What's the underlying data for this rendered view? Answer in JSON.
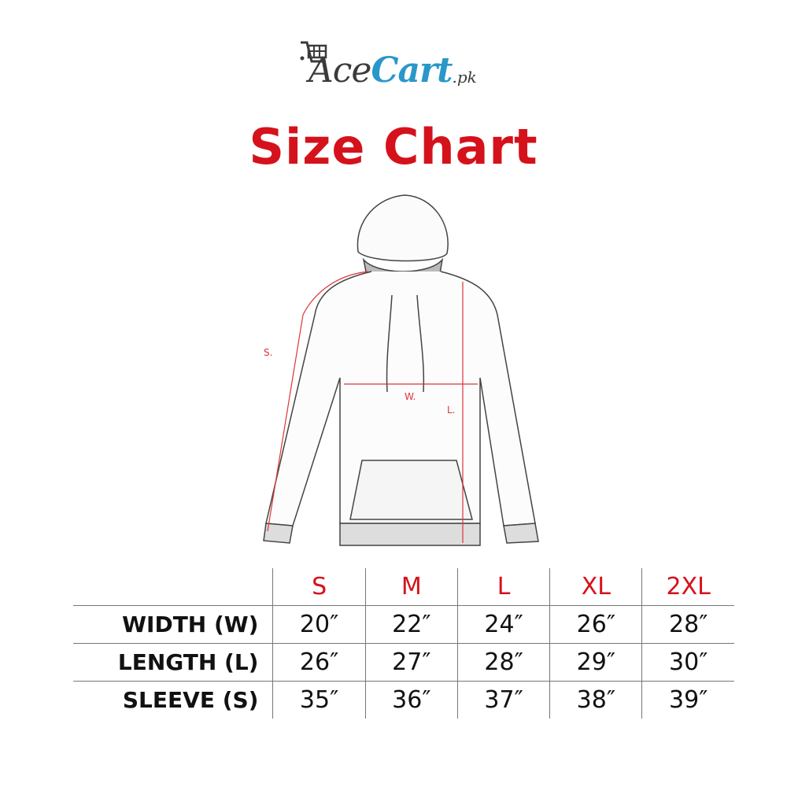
{
  "brand": {
    "logo_part1": "Ace",
    "logo_part2": "Cart",
    "logo_suffix": ".pk",
    "colors": {
      "dark": "#3b3b3d",
      "blue": "#2a97c9"
    }
  },
  "title": "Size Chart",
  "accent_color": "#d5121b",
  "diagram": {
    "sleeve_label": "S.",
    "width_label": "W.",
    "length_label": "L."
  },
  "table": {
    "sizes": [
      "S",
      "M",
      "L",
      "XL",
      "2XL"
    ],
    "rows": [
      {
        "label": "WIDTH (W)",
        "values": [
          "20″",
          "22″",
          "24″",
          "26″",
          "28″"
        ]
      },
      {
        "label": "LENGTH (L)",
        "values": [
          "26″",
          "27″",
          "28″",
          "29″",
          "30″"
        ]
      },
      {
        "label": "SLEEVE (S)",
        "values": [
          "35″",
          "36″",
          "37″",
          "38″",
          "39″"
        ]
      }
    ]
  }
}
